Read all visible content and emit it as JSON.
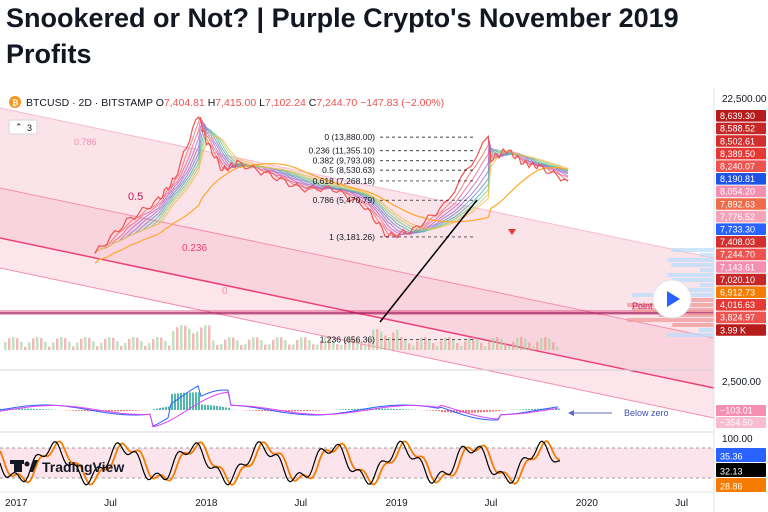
{
  "page_title": "Snookered or Not? | Purple Crypto's November 2019 Profits",
  "header": {
    "symbol": "BTCUSD · 2D · BITSTAMP",
    "ohlc": [
      {
        "key": "O",
        "value": "7,404.81"
      },
      {
        "key": "H",
        "value": "7,415.00"
      },
      {
        "key": "L",
        "value": "7,102.24"
      },
      {
        "key": "C",
        "value": "7,244.70"
      }
    ],
    "change": "−147.83 (−2.00%)",
    "indicator_count": "3",
    "logo_text": "TradingView",
    "colors": {
      "up": "#26a69a",
      "down": "#ef5350",
      "text": "#131722"
    }
  },
  "chart_data": [
    {
      "type": "line",
      "title": "",
      "x_ticks": [
        "2017",
        "Jul",
        "2018",
        "Jul",
        "2019",
        "Jul",
        "2020",
        "Jul"
      ],
      "price_scale_ticks": [
        "22,500.00"
      ],
      "series": [
        {
          "name": "BTCUSD",
          "x": [
            "2017-06",
            "2017-08",
            "2017-10",
            "2017-11",
            "2017-12-17",
            "2018-01",
            "2018-02",
            "2018-03",
            "2018-05",
            "2018-07",
            "2018-09",
            "2018-11",
            "2018-12-15",
            "2019-02",
            "2019-04",
            "2019-06-26",
            "2019-07",
            "2019-08",
            "2019-09",
            "2019-10",
            "2019-11-26"
          ],
          "values": [
            2500,
            4000,
            5500,
            7500,
            19500,
            13000,
            8500,
            9500,
            8000,
            6500,
            6500,
            5000,
            3200,
            3500,
            5000,
            13880,
            10000,
            11500,
            9500,
            9000,
            7244.7
          ]
        }
      ],
      "fibonacci": [
        {
          "ratio": "0",
          "price": "13,880.00"
        },
        {
          "ratio": "0.236",
          "price": "11,355.10"
        },
        {
          "ratio": "0.382",
          "price": "9,793.08"
        },
        {
          "ratio": "0.5",
          "price": "8,530.63"
        },
        {
          "ratio": "0.618",
          "price": "7,268.18"
        },
        {
          "ratio": "0.786",
          "price": "5,470.79"
        },
        {
          "ratio": "1",
          "price": "3,181.26"
        },
        {
          "ratio": "1.236",
          "price": "656.36"
        }
      ],
      "channel_labels": [
        "0.786",
        "0.5",
        "0.236",
        "0"
      ],
      "point_label": "Point",
      "price_tags": [
        {
          "value": "8,639.30",
          "color": "#b71c1c"
        },
        {
          "value": "8,588.52",
          "color": "#c62828"
        },
        {
          "value": "8,502.61",
          "color": "#d32f2f"
        },
        {
          "value": "8,389.50",
          "color": "#e53935"
        },
        {
          "value": "8,240.07",
          "color": "#ef5350"
        },
        {
          "value": "8,190.81",
          "color": "#1e53e5"
        },
        {
          "value": "8,054.20",
          "color": "#f48fb1"
        },
        {
          "value": "7,892.63",
          "color": "#ef6c4a"
        },
        {
          "value": "7,776.52",
          "color": "#f4a3b8"
        },
        {
          "value": "7,733.30",
          "color": "#2962ff"
        },
        {
          "value": "7,408.03",
          "color": "#d32f2f"
        },
        {
          "value": "7,244.70",
          "color": "#ef5350"
        },
        {
          "value": "7,143.61",
          "color": "#f48fb1"
        },
        {
          "value": "7,020.10",
          "color": "#c62828"
        },
        {
          "value": "6,912.73",
          "color": "#f57c00"
        },
        {
          "value": "4,016.63",
          "color": "#e53935"
        },
        {
          "value": "3,824.97",
          "color": "#ef5350"
        },
        {
          "value": "3.99 K",
          "color": "#b71c1c"
        }
      ]
    },
    {
      "type": "line",
      "title": "",
      "price_scale_ticks": [
        "2,500.00"
      ],
      "series": [
        {
          "name": "",
          "color": "#2962ff"
        },
        {
          "name": "",
          "color": "#e040fb"
        }
      ],
      "annotation": "Below zero",
      "price_tags": [
        {
          "value": "−103.01",
          "color": "#f48fb1"
        },
        {
          "value": "−354.50",
          "color": "#f8bbd0"
        }
      ]
    },
    {
      "type": "line",
      "title": "",
      "price_scale_ticks": [
        "100.00"
      ],
      "series": [
        {
          "name": "",
          "color": "#000000"
        },
        {
          "name": "",
          "color": "#f57c00"
        }
      ],
      "price_tags": [
        {
          "value": "35.36",
          "color": "#2962ff"
        },
        {
          "value": "32.13",
          "color": "#000000"
        },
        {
          "value": "28.86",
          "color": "#f57c00"
        }
      ]
    }
  ]
}
